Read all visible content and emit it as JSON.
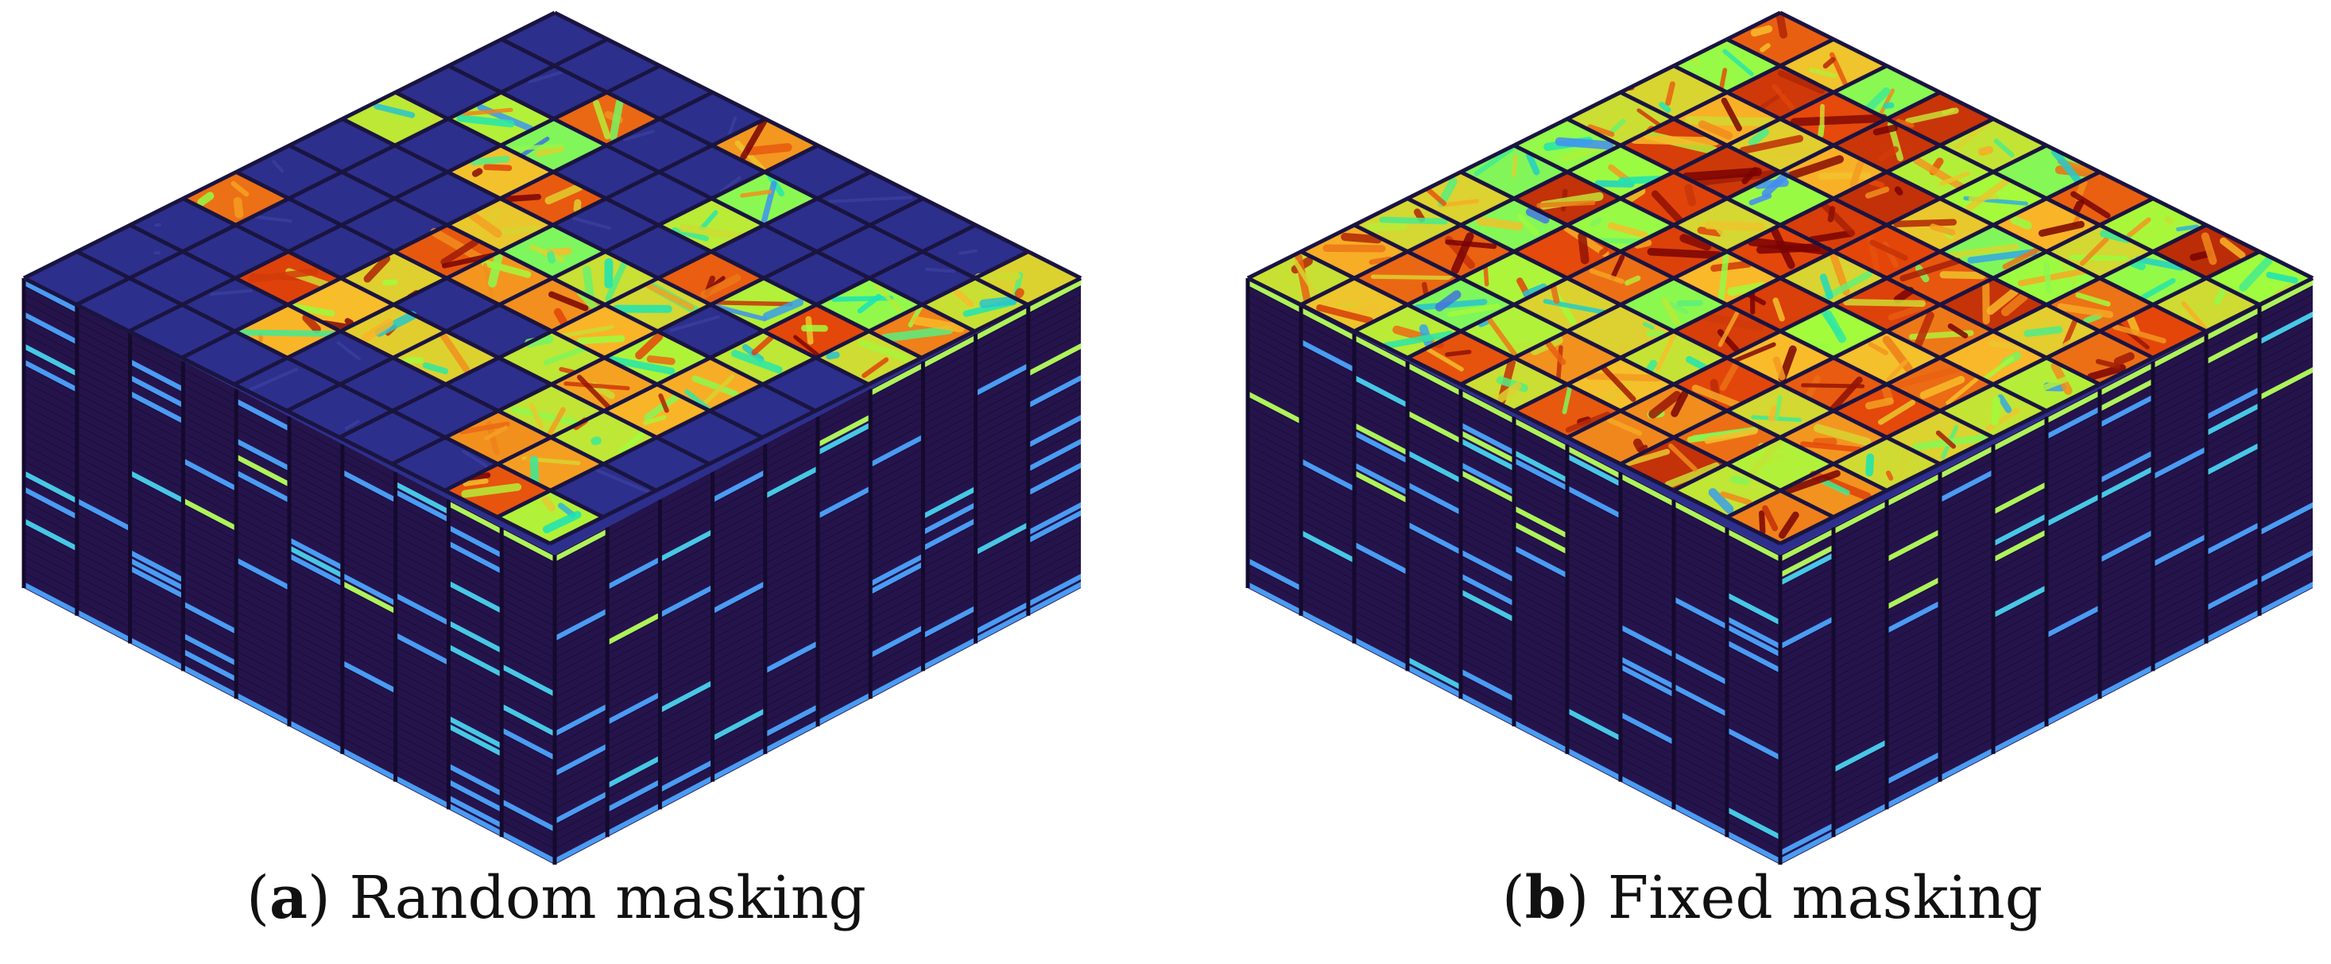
{
  "figure": {
    "panels": [
      {
        "id": "a",
        "caption_letter": "a",
        "caption_text": "Random masking",
        "masking": "random",
        "grid_rows": 10,
        "grid_cols": 10,
        "visible_cells": [
          [
            0,
            4
          ],
          [
            0,
            9
          ],
          [
            1,
            2
          ],
          [
            1,
            5
          ],
          [
            1,
            9
          ],
          [
            2,
            1
          ],
          [
            2,
            2
          ],
          [
            2,
            5
          ],
          [
            2,
            8
          ],
          [
            2,
            9
          ],
          [
            3,
            0
          ],
          [
            3,
            2
          ],
          [
            3,
            3
          ],
          [
            3,
            6
          ],
          [
            3,
            7
          ],
          [
            3,
            8
          ],
          [
            3,
            9
          ],
          [
            4,
            3
          ],
          [
            4,
            4
          ],
          [
            4,
            5
          ],
          [
            4,
            6
          ],
          [
            4,
            8
          ],
          [
            5,
            3
          ],
          [
            5,
            4
          ],
          [
            5,
            5
          ],
          [
            5,
            6
          ],
          [
            5,
            7
          ],
          [
            5,
            8
          ],
          [
            6,
            0
          ],
          [
            6,
            3
          ],
          [
            6,
            6
          ],
          [
            6,
            7
          ],
          [
            6,
            8
          ],
          [
            7,
            2
          ],
          [
            7,
            3
          ],
          [
            7,
            4
          ],
          [
            7,
            5
          ],
          [
            7,
            7
          ],
          [
            7,
            8
          ],
          [
            8,
            3
          ],
          [
            8,
            7
          ],
          [
            8,
            8
          ],
          [
            9,
            8
          ],
          [
            9,
            9
          ]
        ]
      },
      {
        "id": "b",
        "caption_letter": "b",
        "caption_text": "Fixed masking",
        "masking": "fixed",
        "grid_rows": 10,
        "grid_cols": 10,
        "visible_cells": "all"
      }
    ],
    "colors": {
      "masked_top": "#2c2f8c",
      "side_dark": "#25144b",
      "side_divider": "#140a2e",
      "band_blue": "#4a9cf3",
      "band_cyan": "#47c8e6",
      "band_green": "#aef35a",
      "heat_colormap": [
        "#30123b",
        "#4686fb",
        "#1ae4b6",
        "#a2fc3c",
        "#fabc2a",
        "#e4460a",
        "#7a0403"
      ]
    }
  }
}
